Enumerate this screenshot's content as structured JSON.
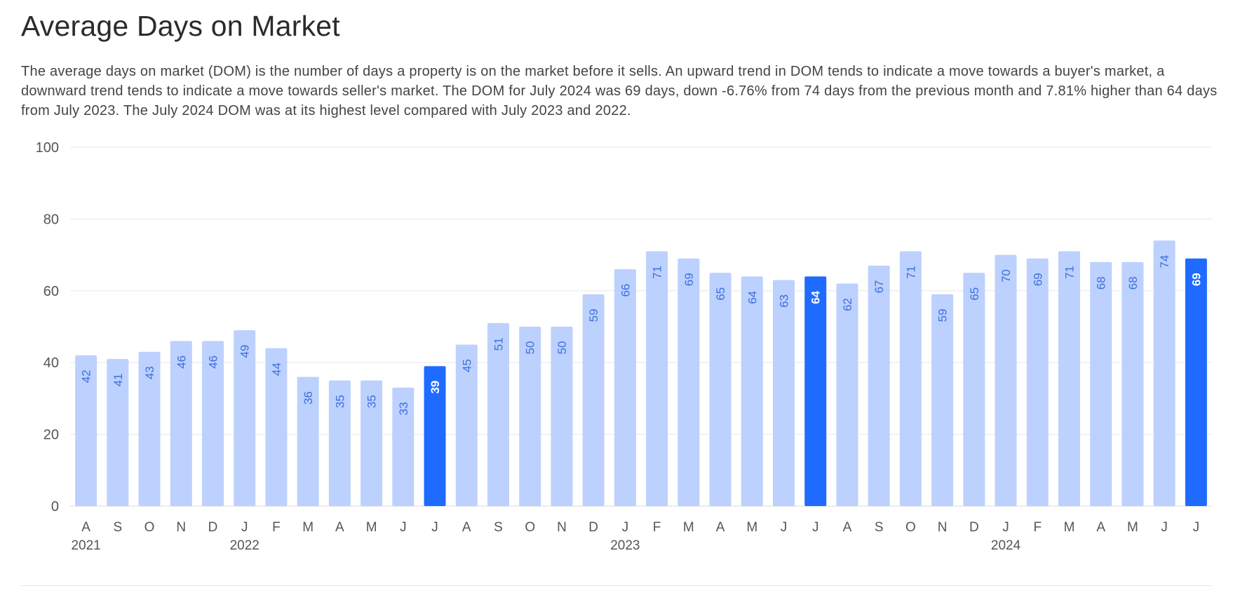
{
  "title": "Average Days on Market",
  "description": "The average days on market (DOM) is the number of days a property is on the market before it sells. An upward trend in DOM tends to indicate a move towards a buyer's market, a downward trend tends to indicate a move towards seller's market. The DOM for July 2024 was 69 days, down -6.76% from 74 days from the previous month and 7.81% higher than 64 days from July 2023. The July 2024 DOM was at its highest level compared with July 2023 and 2022.",
  "colors": {
    "bar": "#bcd1fd",
    "highlight": "#1f6bff",
    "bar_label": "#3c6fe0",
    "highlight_label": "#ffffff",
    "grid": "#e7e7e7"
  },
  "chart_data": {
    "type": "bar",
    "title": "Average Days on Market",
    "xlabel": "",
    "ylabel": "",
    "ylim": [
      0,
      100
    ],
    "yticks": [
      0,
      20,
      40,
      60,
      80,
      100
    ],
    "grid": true,
    "categories": [
      "2021-08",
      "2021-09",
      "2021-10",
      "2021-11",
      "2021-12",
      "2022-01",
      "2022-02",
      "2022-03",
      "2022-04",
      "2022-05",
      "2022-06",
      "2022-07",
      "2022-08",
      "2022-09",
      "2022-10",
      "2022-11",
      "2022-12",
      "2023-01",
      "2023-02",
      "2023-03",
      "2023-04",
      "2023-05",
      "2023-06",
      "2023-07",
      "2023-08",
      "2023-09",
      "2023-10",
      "2023-11",
      "2023-12",
      "2024-01",
      "2024-02",
      "2024-03",
      "2024-04",
      "2024-05",
      "2024-06",
      "2024-07"
    ],
    "month_labels": [
      "A",
      "S",
      "O",
      "N",
      "D",
      "J",
      "F",
      "M",
      "A",
      "M",
      "J",
      "J",
      "A",
      "S",
      "O",
      "N",
      "D",
      "J",
      "F",
      "M",
      "A",
      "M",
      "J",
      "J",
      "A",
      "S",
      "O",
      "N",
      "D",
      "J",
      "F",
      "M",
      "A",
      "M",
      "J",
      "J"
    ],
    "year_labels": [
      {
        "index": 0,
        "label": "2021"
      },
      {
        "index": 5,
        "label": "2022"
      },
      {
        "index": 17,
        "label": "2023"
      },
      {
        "index": 29,
        "label": "2024"
      }
    ],
    "values": [
      42,
      41,
      43,
      46,
      46,
      49,
      44,
      36,
      35,
      35,
      33,
      39,
      45,
      51,
      50,
      50,
      59,
      66,
      71,
      69,
      65,
      64,
      63,
      64,
      62,
      67,
      71,
      59,
      65,
      70,
      69,
      71,
      68,
      68,
      74,
      69
    ],
    "highlighted": [
      "2022-07",
      "2023-07",
      "2024-07"
    ]
  }
}
